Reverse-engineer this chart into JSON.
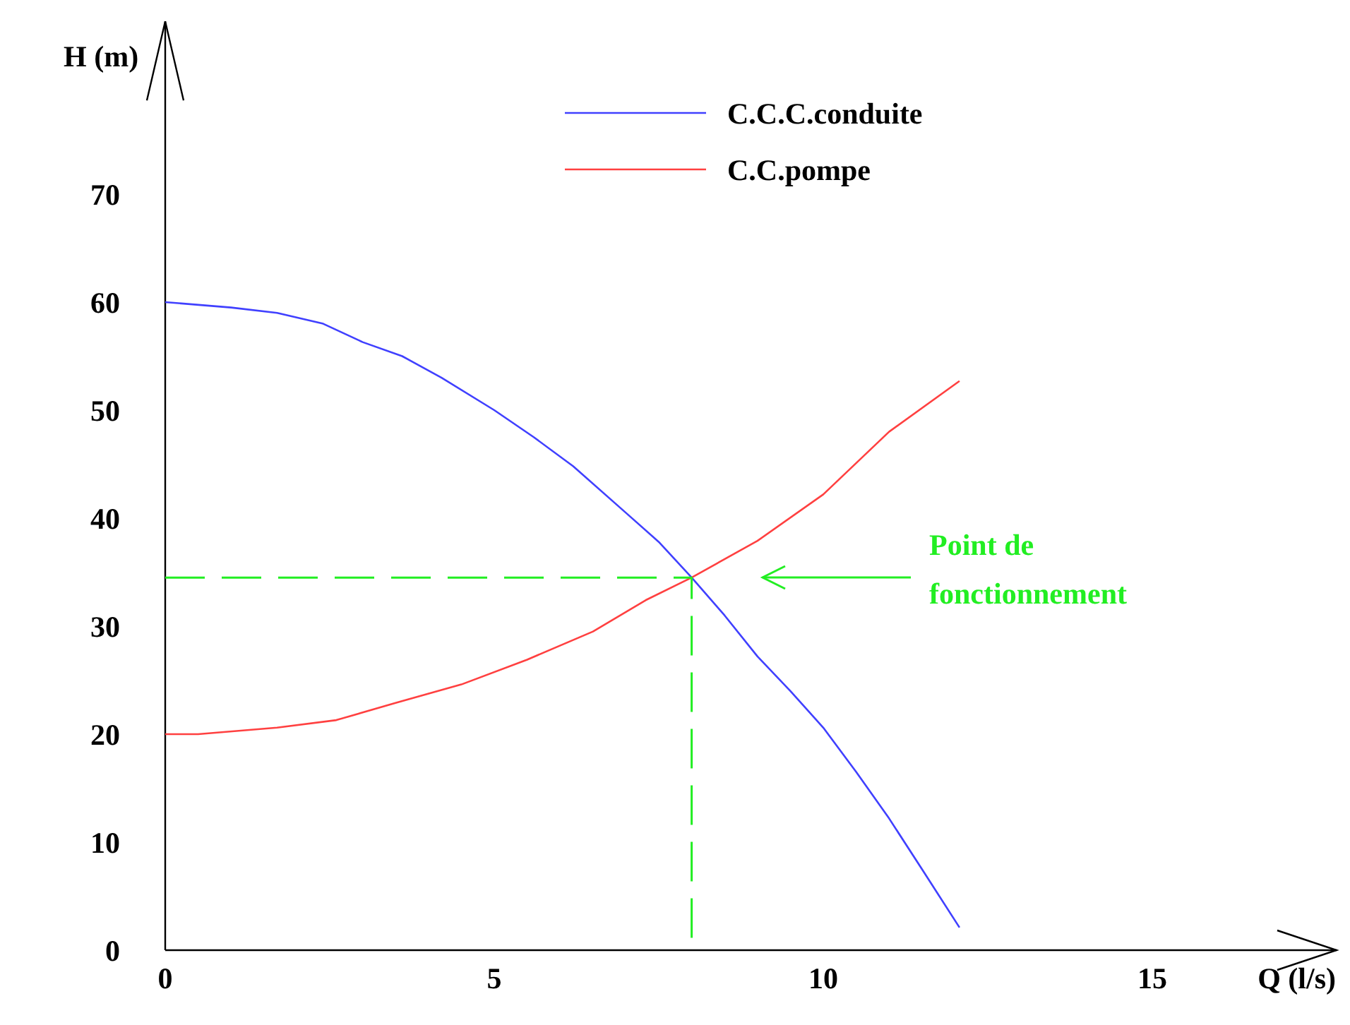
{
  "chart_data": {
    "type": "line",
    "xlabel": "Q (l/s)",
    "ylabel": "H (m)",
    "xlim": [
      0,
      17.8
    ],
    "ylim": [
      0,
      86
    ],
    "xticks": [
      0,
      5,
      10,
      15
    ],
    "yticks": [
      0,
      10,
      20,
      30,
      40,
      50,
      60,
      70
    ],
    "grid": false,
    "legend": "top",
    "marker": "none",
    "series": [
      {
        "name": "C.C.C.conduite",
        "color": "#4040ff",
        "x": [
          0,
          1,
          1.7,
          2.4,
          3,
          3.6,
          4.2,
          5,
          5.6,
          6.2,
          7,
          7.5,
          8,
          8.5,
          9,
          9.5,
          10,
          10.5,
          11,
          11.5,
          12.07
        ],
        "values": [
          60,
          59.5,
          59,
          58,
          56.3,
          55,
          53,
          50,
          47.5,
          44.8,
          40.5,
          37.8,
          34.5,
          31,
          27.2,
          24,
          20.6,
          16.5,
          12.2,
          7.5,
          2.1
        ]
      },
      {
        "name": "C.C.pompe",
        "color": "#ff4040",
        "x": [
          0,
          0.5,
          1.7,
          2.6,
          3.5,
          4.5,
          5.5,
          6.5,
          7.3,
          8,
          9,
          10,
          11,
          12.07
        ],
        "values": [
          20,
          20,
          20.6,
          21.3,
          22.9,
          24.6,
          26.9,
          29.5,
          32.4,
          34.5,
          37.9,
          42.2,
          48,
          52.7
        ]
      },
      {
        "type": "line",
        "line_style": "dashed",
        "color": "#22ee22",
        "x": [
          0,
          8,
          8
        ],
        "values": [
          34.5,
          34.5,
          0
        ]
      }
    ],
    "annotations": [
      "Point de fonctionnement"
    ]
  }
}
